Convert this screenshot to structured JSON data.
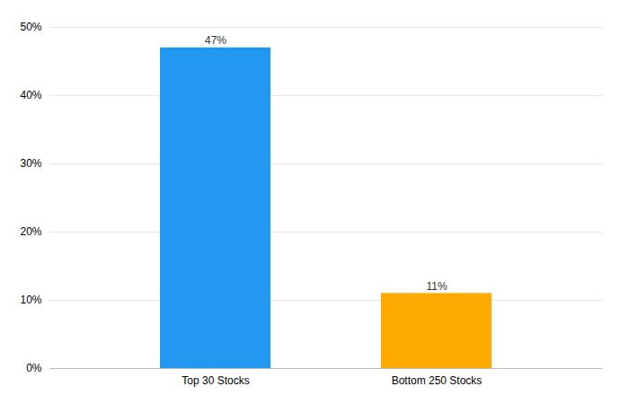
{
  "chart_data": {
    "type": "bar",
    "categories": [
      "Top 30 Stocks",
      "Bottom 250 Stocks"
    ],
    "values": [
      47,
      11
    ],
    "value_labels": [
      "47%",
      "11%"
    ],
    "colors": [
      "#2398F0",
      "#FFAA00"
    ],
    "ylim": [
      0,
      50
    ],
    "yticks": [
      {
        "value": 0,
        "label": "0%"
      },
      {
        "value": 10,
        "label": "10%"
      },
      {
        "value": 20,
        "label": "20%"
      },
      {
        "value": 30,
        "label": "30%"
      },
      {
        "value": 40,
        "label": "40%"
      },
      {
        "value": 50,
        "label": "50%"
      }
    ],
    "grid": true,
    "data_labels": true
  }
}
